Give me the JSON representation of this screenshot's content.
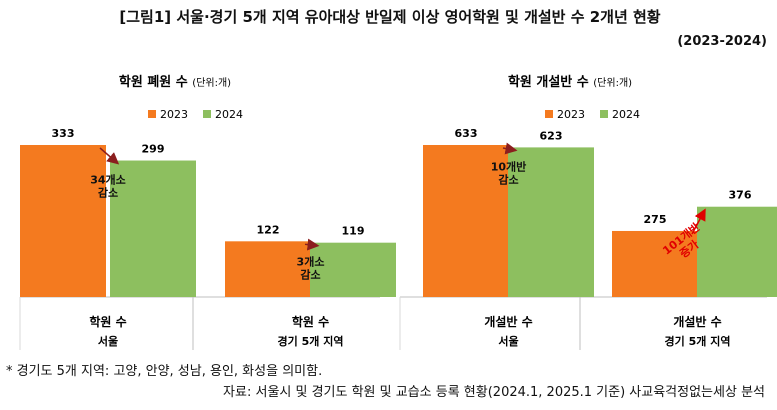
{
  "header": {
    "title": "[그림1] 서울·경기 5개 지역 유아대상 반일제 이상 영어학원 및 개설반 수 2개년 현황",
    "years": "(2023-2024)"
  },
  "footnotes": {
    "note": "*  경기도 5개 지역: 고양, 안양, 성남, 용인, 화성을 의미함.",
    "source": "자료: 서울시 및 경기도 학원 및 교습소 등록 현황(2024.1, 2025.1 기준) 사교육걱정없는세상 분석"
  },
  "colors": {
    "y2023": "#F47A1F",
    "y2024": "#8DBF5F",
    "arrow": "#8B1E1E",
    "increase": "#E00000"
  },
  "chart_data": [
    {
      "type": "bar",
      "title": "학원 폐원 수",
      "unit": "(단위:개)",
      "series_names": [
        "2023",
        "2024"
      ],
      "groups": [
        {
          "label": "학원 수",
          "region": "서울",
          "values": [
            333,
            299
          ],
          "change_line1": "34개소",
          "change_line2": "감소"
        },
        {
          "label": "학원 수",
          "region": "경기 5개 지역",
          "values": [
            122,
            119
          ],
          "change_line1": "3개소",
          "change_line2": "감소"
        }
      ],
      "ylim": [
        0,
        333
      ]
    },
    {
      "type": "bar",
      "title": "학원 개설반 수",
      "unit": "(단위:개)",
      "series_names": [
        "2023",
        "2024"
      ],
      "groups": [
        {
          "label": "개설반 수",
          "region": "서울",
          "values": [
            633,
            623
          ],
          "change_line1": "10개반",
          "change_line2": "감소"
        },
        {
          "label": "개설반 수",
          "region": "경기 5개 지역",
          "values": [
            275,
            376
          ],
          "change_line1": "101개반",
          "change_line2": "증가"
        }
      ],
      "ylim": [
        0,
        633
      ]
    }
  ]
}
